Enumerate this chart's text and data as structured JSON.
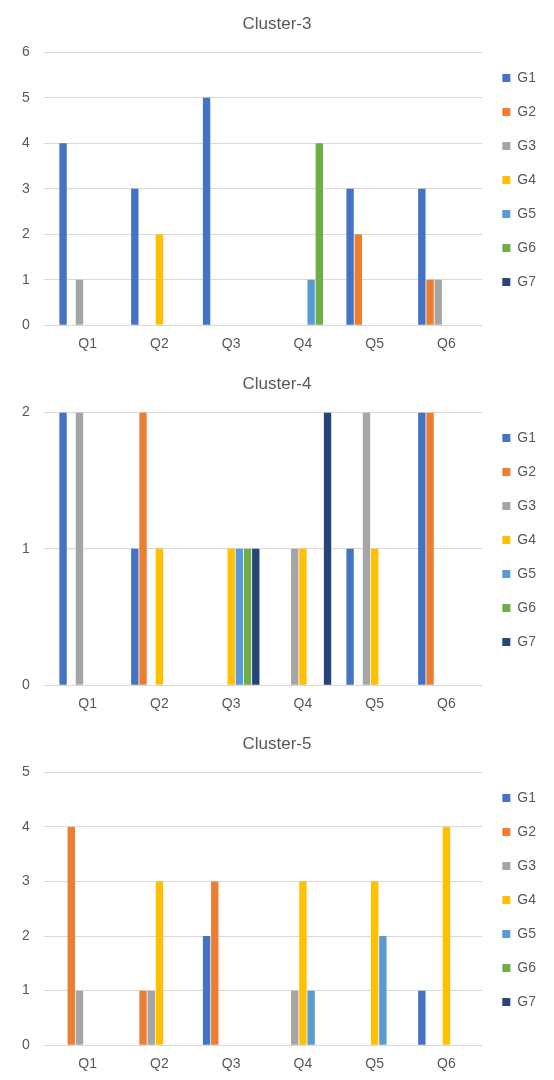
{
  "chart_data": [
    {
      "type": "bar",
      "title": "Cluster-3",
      "categories": [
        "Q1",
        "Q2",
        "Q3",
        "Q4",
        "Q5",
        "Q6"
      ],
      "ylim": [
        0,
        6
      ],
      "yticks": [
        0,
        1,
        2,
        3,
        4,
        5,
        6
      ],
      "grid": "y",
      "legend": "right",
      "series": [
        {
          "name": "G1",
          "color": "#4472c4",
          "values": [
            4,
            3,
            5,
            0,
            3,
            3
          ]
        },
        {
          "name": "G2",
          "color": "#ed7d31",
          "values": [
            0,
            0,
            0,
            0,
            2,
            1
          ]
        },
        {
          "name": "G3",
          "color": "#a5a5a5",
          "values": [
            1,
            0,
            0,
            0,
            0,
            1
          ]
        },
        {
          "name": "G4",
          "color": "#ffc000",
          "values": [
            0,
            2,
            0,
            0,
            0,
            0
          ]
        },
        {
          "name": "G5",
          "color": "#5b9bd5",
          "values": [
            0,
            0,
            0,
            1,
            0,
            0
          ]
        },
        {
          "name": "G6",
          "color": "#70ad47",
          "values": [
            0,
            0,
            0,
            4,
            0,
            0
          ]
        },
        {
          "name": "G7",
          "color": "#264478",
          "values": [
            0,
            0,
            0,
            0,
            0,
            0
          ]
        }
      ]
    },
    {
      "type": "bar",
      "title": "Cluster-4",
      "categories": [
        "Q1",
        "Q2",
        "Q3",
        "Q4",
        "Q5",
        "Q6"
      ],
      "ylim": [
        0,
        2
      ],
      "yticks": [
        0,
        1,
        2
      ],
      "grid": "y",
      "legend": "right",
      "series": [
        {
          "name": "G1",
          "color": "#4472c4",
          "values": [
            2,
            1,
            0,
            0,
            1,
            2
          ]
        },
        {
          "name": "G2",
          "color": "#ed7d31",
          "values": [
            0,
            2,
            0,
            0,
            0,
            2
          ]
        },
        {
          "name": "G3",
          "color": "#a5a5a5",
          "values": [
            2,
            0,
            0,
            1,
            2,
            0
          ]
        },
        {
          "name": "G4",
          "color": "#ffc000",
          "values": [
            0,
            1,
            1,
            1,
            1,
            0
          ]
        },
        {
          "name": "G5",
          "color": "#5b9bd5",
          "values": [
            0,
            0,
            1,
            0,
            0,
            0
          ]
        },
        {
          "name": "G6",
          "color": "#70ad47",
          "values": [
            0,
            0,
            1,
            0,
            0,
            0
          ]
        },
        {
          "name": "G7",
          "color": "#264478",
          "values": [
            0,
            0,
            1,
            2,
            0,
            0
          ]
        }
      ]
    },
    {
      "type": "bar",
      "title": "Cluster-5",
      "categories": [
        "Q1",
        "Q2",
        "Q3",
        "Q4",
        "Q5",
        "Q6"
      ],
      "ylim": [
        0,
        5
      ],
      "yticks": [
        0,
        1,
        2,
        3,
        4,
        5
      ],
      "grid": "y",
      "legend": "right",
      "series": [
        {
          "name": "G1",
          "color": "#4472c4",
          "values": [
            0,
            0,
            2,
            0,
            0,
            1
          ]
        },
        {
          "name": "G2",
          "color": "#ed7d31",
          "values": [
            4,
            1,
            3,
            0,
            0,
            0
          ]
        },
        {
          "name": "G3",
          "color": "#a5a5a5",
          "values": [
            1,
            1,
            0,
            1,
            0,
            0
          ]
        },
        {
          "name": "G4",
          "color": "#ffc000",
          "values": [
            0,
            3,
            0,
            3,
            3,
            4
          ]
        },
        {
          "name": "G5",
          "color": "#5b9bd5",
          "values": [
            0,
            0,
            0,
            1,
            2,
            0
          ]
        },
        {
          "name": "G6",
          "color": "#70ad47",
          "values": [
            0,
            0,
            0,
            0,
            0,
            0
          ]
        },
        {
          "name": "G7",
          "color": "#264478",
          "values": [
            0,
            0,
            0,
            0,
            0,
            0
          ]
        }
      ]
    }
  ]
}
